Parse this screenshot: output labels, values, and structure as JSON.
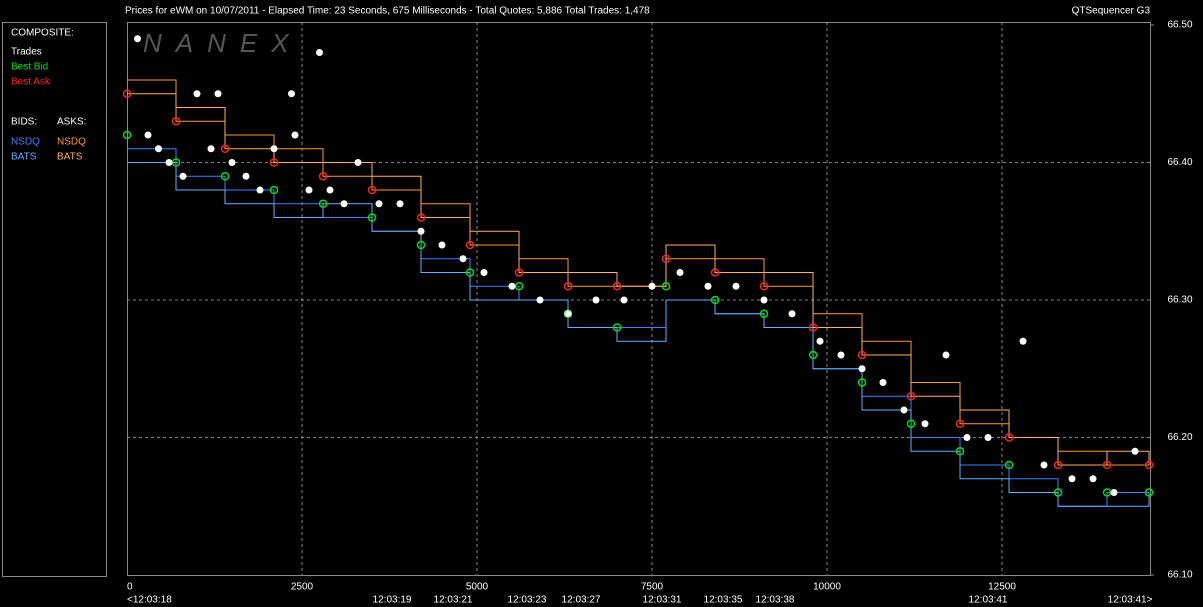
{
  "header": {
    "title": "Prices for  eWM  on  10/07/2011  -  Elapsed Time: 23 Seconds, 675 Milliseconds  -  Total Quotes: 5,886  Total Trades: 1,478",
    "app": "QTSequencer G3"
  },
  "watermark": "NANEX",
  "chart_data": {
    "type": "quote-trade",
    "legend_title": "COMPOSITE:",
    "legend_groups": [
      "BIDS:",
      "ASKS:"
    ],
    "xlim": [
      0,
      14614
    ],
    "xticks": [
      0,
      2500,
      5000,
      7500,
      10000,
      12500
    ],
    "ylim": [
      66.1,
      66.5
    ],
    "yticks": [
      {
        "value": 66.1,
        "label": "66.10"
      },
      {
        "value": 66.2,
        "label": "66.20"
      },
      {
        "value": 66.3,
        "label": "66.30"
      },
      {
        "value": 66.4,
        "label": "66.40"
      },
      {
        "value": 66.5,
        "label": "66.50"
      }
    ],
    "grid": true,
    "time_labels": [
      {
        "value": 0,
        "label": "<12:03:18"
      },
      {
        "value": 3786,
        "label": "12:03:19"
      },
      {
        "value": 4657,
        "label": "12:03:21"
      },
      {
        "value": 5714,
        "label": "12:03:23"
      },
      {
        "value": 6486,
        "label": "12:03:27"
      },
      {
        "value": 7643,
        "label": "12:03:31"
      },
      {
        "value": 8514,
        "label": "12:03:35"
      },
      {
        "value": 9257,
        "label": "12:03:38"
      },
      {
        "value": 12300,
        "label": "12:03:41"
      },
      {
        "value": 14329,
        "label": "12:03:41>"
      }
    ],
    "series": [
      {
        "name": "Trades",
        "kind": "scatter",
        "color": "#ffffff",
        "x": [
          150,
          300,
          450,
          600,
          800,
          1000,
          1200,
          1300,
          1500,
          1700,
          1900,
          2100,
          2350,
          2400,
          2600,
          2750,
          2900,
          3100,
          3300,
          3600,
          3900,
          4200,
          4500,
          4800,
          5100,
          5500,
          5900,
          6300,
          6700,
          7100,
          7500,
          7900,
          8300,
          8700,
          9100,
          9500,
          9900,
          10200,
          10500,
          10800,
          11100,
          11400,
          11700,
          12000,
          12300,
          12800,
          13100,
          13500,
          13800,
          14100,
          14400
        ],
        "values": [
          66.49,
          66.42,
          66.41,
          66.4,
          66.39,
          66.45,
          66.41,
          66.45,
          66.4,
          66.39,
          66.38,
          66.41,
          66.45,
          66.42,
          66.38,
          66.48,
          66.38,
          66.37,
          66.4,
          66.37,
          66.37,
          66.35,
          66.34,
          66.33,
          66.32,
          66.31,
          66.3,
          66.29,
          66.3,
          66.3,
          66.31,
          66.32,
          66.31,
          66.31,
          66.3,
          66.29,
          66.27,
          66.26,
          66.25,
          66.24,
          66.22,
          66.21,
          66.26,
          66.2,
          66.2,
          66.27,
          66.18,
          66.17,
          66.17,
          66.16,
          66.19
        ]
      },
      {
        "name": "Best Bid",
        "kind": "markers",
        "color": "#00e000",
        "x": [
          0,
          700,
          1400,
          2100,
          2800,
          3500,
          4200,
          4900,
          5600,
          6300,
          7000,
          7700,
          8400,
          9100,
          9800,
          10500,
          11200,
          11900,
          12600,
          13300,
          14000,
          14600
        ],
        "values": [
          66.42,
          66.4,
          66.39,
          66.38,
          66.37,
          66.36,
          66.34,
          66.32,
          66.31,
          66.29,
          66.28,
          66.31,
          66.3,
          66.29,
          66.26,
          66.24,
          66.21,
          66.19,
          66.18,
          66.16,
          66.16,
          66.16
        ]
      },
      {
        "name": "Best Ask",
        "kind": "markers",
        "color": "#ff2020",
        "x": [
          0,
          700,
          1400,
          2100,
          2800,
          3500,
          4200,
          4900,
          5600,
          6300,
          7000,
          7700,
          8400,
          9100,
          9800,
          10500,
          11200,
          11900,
          12600,
          13300,
          14000,
          14600
        ],
        "values": [
          66.45,
          66.43,
          66.41,
          66.4,
          66.39,
          66.38,
          66.36,
          66.34,
          66.32,
          66.31,
          66.31,
          66.33,
          66.32,
          66.31,
          66.28,
          66.26,
          66.23,
          66.21,
          66.2,
          66.18,
          66.18,
          66.18
        ]
      },
      {
        "name": "NSDQ",
        "kind": "step",
        "color": "#3f7fff",
        "x": [
          0,
          700,
          1400,
          2100,
          2800,
          3500,
          4200,
          4900,
          5600,
          6300,
          7000,
          7700,
          8400,
          9100,
          9800,
          10500,
          11200,
          11900,
          12600,
          13300,
          14000,
          14600
        ],
        "values": [
          66.41,
          66.39,
          66.38,
          66.37,
          66.36,
          66.35,
          66.33,
          66.31,
          66.3,
          66.28,
          66.28,
          66.3,
          66.29,
          66.28,
          66.25,
          66.23,
          66.2,
          66.18,
          66.17,
          66.15,
          66.16,
          66.16
        ]
      },
      {
        "name": "BATS",
        "kind": "step",
        "color": "#5fb0ff",
        "x": [
          0,
          700,
          1400,
          2100,
          2800,
          3500,
          4200,
          4900,
          5600,
          6300,
          7000,
          7700,
          8400,
          9100,
          9800,
          10500,
          11200,
          11900,
          12600,
          13300,
          14000,
          14600
        ],
        "values": [
          66.4,
          66.38,
          66.37,
          66.36,
          66.37,
          66.35,
          66.32,
          66.3,
          66.3,
          66.28,
          66.27,
          66.3,
          66.29,
          66.28,
          66.25,
          66.22,
          66.19,
          66.17,
          66.16,
          66.15,
          66.15,
          66.16
        ]
      },
      {
        "name": "NSDQ",
        "kind": "step",
        "color": "#ff9933",
        "x": [
          0,
          700,
          1400,
          2100,
          2800,
          3500,
          4200,
          4900,
          5600,
          6300,
          7000,
          7700,
          8400,
          9100,
          9800,
          10500,
          11200,
          11900,
          12600,
          13300,
          14000,
          14600
        ],
        "values": [
          66.46,
          66.43,
          66.42,
          66.41,
          66.39,
          66.38,
          66.37,
          66.34,
          66.33,
          66.31,
          66.31,
          66.33,
          66.33,
          66.31,
          66.29,
          66.27,
          66.24,
          66.21,
          66.2,
          66.19,
          66.18,
          66.18
        ]
      },
      {
        "name": "BATS",
        "kind": "step",
        "color": "#ffb060",
        "x": [
          0,
          700,
          1400,
          2100,
          2800,
          3500,
          4200,
          4900,
          5600,
          6300,
          7000,
          7700,
          8400,
          9100,
          9800,
          10500,
          11200,
          11900,
          12600,
          13300,
          14000,
          14600
        ],
        "values": [
          66.45,
          66.44,
          66.41,
          66.4,
          66.4,
          66.39,
          66.36,
          66.35,
          66.32,
          66.32,
          66.31,
          66.34,
          66.32,
          66.32,
          66.28,
          66.26,
          66.23,
          66.22,
          66.2,
          66.18,
          66.19,
          66.18
        ]
      }
    ]
  }
}
